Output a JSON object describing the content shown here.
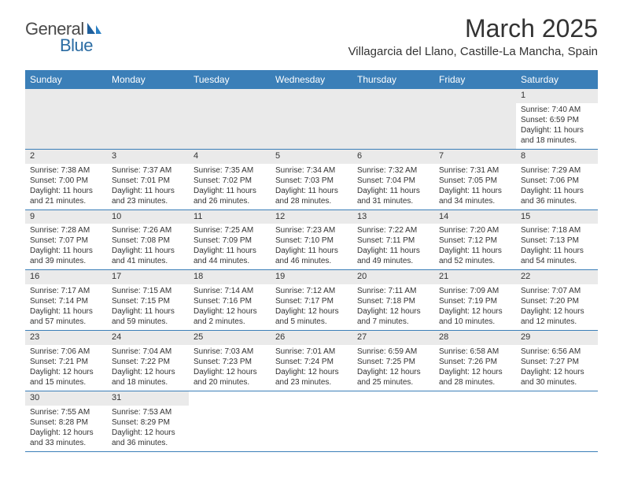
{
  "logo": {
    "textA": "General",
    "textB": "Blue"
  },
  "title": "March 2025",
  "location": "Villagarcia del Llano, Castille-La Mancha, Spain",
  "colors": {
    "header_bg": "#3b7fb8",
    "header_text": "#ffffff",
    "border": "#3b7fb8",
    "daynum_bg": "#eaeaea",
    "body_text": "#333333",
    "logo_gray": "#4a4a4a",
    "logo_blue": "#2b6ca3"
  },
  "dayNames": [
    "Sunday",
    "Monday",
    "Tuesday",
    "Wednesday",
    "Thursday",
    "Friday",
    "Saturday"
  ],
  "days": {
    "1": {
      "sunrise": "7:40 AM",
      "sunset": "6:59 PM",
      "daylight": "11 hours and 18 minutes."
    },
    "2": {
      "sunrise": "7:38 AM",
      "sunset": "7:00 PM",
      "daylight": "11 hours and 21 minutes."
    },
    "3": {
      "sunrise": "7:37 AM",
      "sunset": "7:01 PM",
      "daylight": "11 hours and 23 minutes."
    },
    "4": {
      "sunrise": "7:35 AM",
      "sunset": "7:02 PM",
      "daylight": "11 hours and 26 minutes."
    },
    "5": {
      "sunrise": "7:34 AM",
      "sunset": "7:03 PM",
      "daylight": "11 hours and 28 minutes."
    },
    "6": {
      "sunrise": "7:32 AM",
      "sunset": "7:04 PM",
      "daylight": "11 hours and 31 minutes."
    },
    "7": {
      "sunrise": "7:31 AM",
      "sunset": "7:05 PM",
      "daylight": "11 hours and 34 minutes."
    },
    "8": {
      "sunrise": "7:29 AM",
      "sunset": "7:06 PM",
      "daylight": "11 hours and 36 minutes."
    },
    "9": {
      "sunrise": "7:28 AM",
      "sunset": "7:07 PM",
      "daylight": "11 hours and 39 minutes."
    },
    "10": {
      "sunrise": "7:26 AM",
      "sunset": "7:08 PM",
      "daylight": "11 hours and 41 minutes."
    },
    "11": {
      "sunrise": "7:25 AM",
      "sunset": "7:09 PM",
      "daylight": "11 hours and 44 minutes."
    },
    "12": {
      "sunrise": "7:23 AM",
      "sunset": "7:10 PM",
      "daylight": "11 hours and 46 minutes."
    },
    "13": {
      "sunrise": "7:22 AM",
      "sunset": "7:11 PM",
      "daylight": "11 hours and 49 minutes."
    },
    "14": {
      "sunrise": "7:20 AM",
      "sunset": "7:12 PM",
      "daylight": "11 hours and 52 minutes."
    },
    "15": {
      "sunrise": "7:18 AM",
      "sunset": "7:13 PM",
      "daylight": "11 hours and 54 minutes."
    },
    "16": {
      "sunrise": "7:17 AM",
      "sunset": "7:14 PM",
      "daylight": "11 hours and 57 minutes."
    },
    "17": {
      "sunrise": "7:15 AM",
      "sunset": "7:15 PM",
      "daylight": "11 hours and 59 minutes."
    },
    "18": {
      "sunrise": "7:14 AM",
      "sunset": "7:16 PM",
      "daylight": "12 hours and 2 minutes."
    },
    "19": {
      "sunrise": "7:12 AM",
      "sunset": "7:17 PM",
      "daylight": "12 hours and 5 minutes."
    },
    "20": {
      "sunrise": "7:11 AM",
      "sunset": "7:18 PM",
      "daylight": "12 hours and 7 minutes."
    },
    "21": {
      "sunrise": "7:09 AM",
      "sunset": "7:19 PM",
      "daylight": "12 hours and 10 minutes."
    },
    "22": {
      "sunrise": "7:07 AM",
      "sunset": "7:20 PM",
      "daylight": "12 hours and 12 minutes."
    },
    "23": {
      "sunrise": "7:06 AM",
      "sunset": "7:21 PM",
      "daylight": "12 hours and 15 minutes."
    },
    "24": {
      "sunrise": "7:04 AM",
      "sunset": "7:22 PM",
      "daylight": "12 hours and 18 minutes."
    },
    "25": {
      "sunrise": "7:03 AM",
      "sunset": "7:23 PM",
      "daylight": "12 hours and 20 minutes."
    },
    "26": {
      "sunrise": "7:01 AM",
      "sunset": "7:24 PM",
      "daylight": "12 hours and 23 minutes."
    },
    "27": {
      "sunrise": "6:59 AM",
      "sunset": "7:25 PM",
      "daylight": "12 hours and 25 minutes."
    },
    "28": {
      "sunrise": "6:58 AM",
      "sunset": "7:26 PM",
      "daylight": "12 hours and 28 minutes."
    },
    "29": {
      "sunrise": "6:56 AM",
      "sunset": "7:27 PM",
      "daylight": "12 hours and 30 minutes."
    },
    "30": {
      "sunrise": "7:55 AM",
      "sunset": "8:28 PM",
      "daylight": "12 hours and 33 minutes."
    },
    "31": {
      "sunrise": "7:53 AM",
      "sunset": "8:29 PM",
      "daylight": "12 hours and 36 minutes."
    }
  },
  "labels": {
    "sunrise": "Sunrise:",
    "sunset": "Sunset:",
    "daylight": "Daylight:"
  },
  "layout": {
    "firstDayColumn": 6,
    "totalDays": 31,
    "columns": 7
  }
}
